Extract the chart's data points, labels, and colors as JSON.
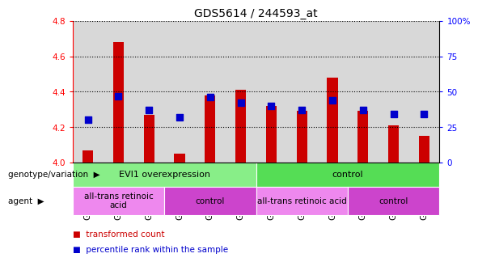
{
  "title": "GDS5614 / 244593_at",
  "samples": [
    "GSM1633066",
    "GSM1633070",
    "GSM1633074",
    "GSM1633064",
    "GSM1633068",
    "GSM1633072",
    "GSM1633065",
    "GSM1633069",
    "GSM1633073",
    "GSM1633063",
    "GSM1633067",
    "GSM1633071"
  ],
  "transformed_count": [
    4.07,
    4.68,
    4.27,
    4.05,
    4.38,
    4.41,
    4.32,
    4.29,
    4.48,
    4.29,
    4.21,
    4.15
  ],
  "percentile_rank": [
    30,
    47,
    37,
    32,
    46,
    42,
    40,
    37,
    44,
    37,
    34,
    34
  ],
  "ylim_left": [
    4.0,
    4.8
  ],
  "ylim_right": [
    0,
    100
  ],
  "yticks_left": [
    4.0,
    4.2,
    4.4,
    4.6,
    4.8
  ],
  "yticks_right": [
    0,
    25,
    50,
    75,
    100
  ],
  "ytick_right_labels": [
    "0",
    "25",
    "50",
    "75",
    "100%"
  ],
  "bar_color": "#cc0000",
  "dot_color": "#0000cc",
  "bar_width": 0.35,
  "dot_size": 28,
  "col_bg_color": "#d8d8d8",
  "plot_bg_color": "#ffffff",
  "groups": [
    {
      "label": "EVI1 overexpression",
      "start": 0,
      "end": 6,
      "color": "#88ee88"
    },
    {
      "label": "control",
      "start": 6,
      "end": 12,
      "color": "#55dd55"
    }
  ],
  "agents": [
    {
      "label": "all-trans retinoic\nacid",
      "start": 0,
      "end": 3,
      "color": "#ee88ee"
    },
    {
      "label": "control",
      "start": 3,
      "end": 6,
      "color": "#cc44cc"
    },
    {
      "label": "all-trans retinoic acid",
      "start": 6,
      "end": 9,
      "color": "#ee88ee"
    },
    {
      "label": "control",
      "start": 9,
      "end": 12,
      "color": "#cc44cc"
    }
  ],
  "row_labels": [
    "genotype/variation",
    "agent"
  ],
  "legend_labels": [
    "transformed count",
    "percentile rank within the sample"
  ],
  "legend_colors": [
    "#cc0000",
    "#0000cc"
  ],
  "title_fontsize": 10,
  "tick_fontsize": 7.5,
  "label_fontsize": 7.5,
  "annotation_fontsize": 8,
  "legend_fontsize": 7.5
}
